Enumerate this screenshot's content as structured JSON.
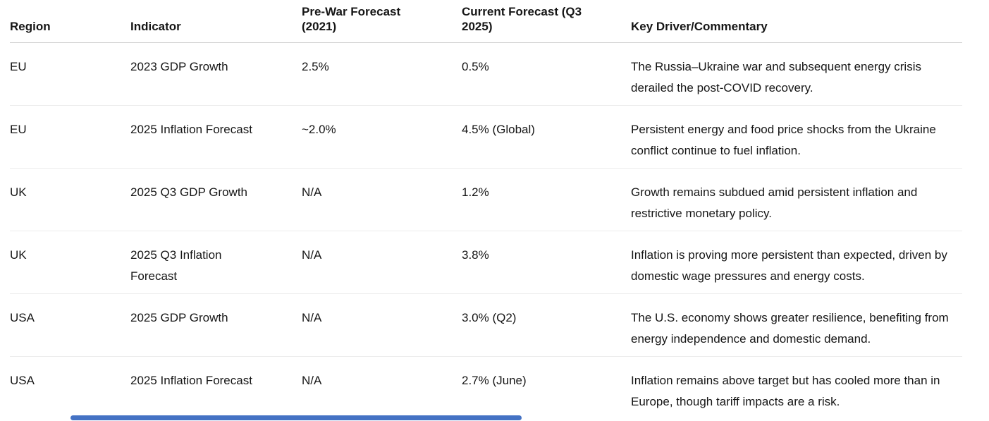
{
  "page": {
    "background": "#ffffff",
    "text_color": "#161616",
    "header_divider_color": "#cfcfcf",
    "row_divider_color": "#ececec"
  },
  "table": {
    "columns": [
      {
        "label": "Region"
      },
      {
        "label": "Indicator"
      },
      {
        "label": "Pre-War Forecast (2021)"
      },
      {
        "label": "Current Forecast (Q3 2025)"
      },
      {
        "label": "Key Driver/Commentary"
      }
    ],
    "rows": [
      {
        "region": "EU",
        "indicator": "2023 GDP Growth",
        "prewar_forecast": "2.5%",
        "current_forecast": "0.5%",
        "commentary": "The Russia–Ukraine war and subsequent energy crisis derailed the post-COVID recovery."
      },
      {
        "region": "EU",
        "indicator": "2025 Inflation Forecast",
        "prewar_forecast": "~2.0%",
        "current_forecast": "4.5% (Global)",
        "commentary": "Persistent energy and food price shocks from the Ukraine conflict continue to fuel inflation."
      },
      {
        "region": "UK",
        "indicator": "2025 Q3 GDP Growth",
        "prewar_forecast": "N/A",
        "current_forecast": "1.2%",
        "commentary": "Growth remains subdued amid persistent inflation and restrictive monetary policy."
      },
      {
        "region": "UK",
        "indicator": "2025 Q3 Inflation Forecast",
        "prewar_forecast": "N/A",
        "current_forecast": "3.8%",
        "commentary": "Inflation is proving more persistent than expected, driven by domestic wage pressures and energy costs."
      },
      {
        "region": "USA",
        "indicator": "2025 GDP Growth",
        "prewar_forecast": "N/A",
        "current_forecast": "3.0% (Q2)",
        "commentary": "The U.S. economy shows greater resilience, benefiting from energy independence and domestic demand."
      },
      {
        "region": "USA",
        "indicator": "2025 Inflation Forecast",
        "prewar_forecast": "N/A",
        "current_forecast": "2.7% (June)",
        "commentary": "Inflation remains above target but has cooled more than in Europe, though tariff impacts are a risk."
      }
    ]
  },
  "scrollbar": {
    "orientation": "horizontal",
    "thumb_color": "#4472c4"
  }
}
